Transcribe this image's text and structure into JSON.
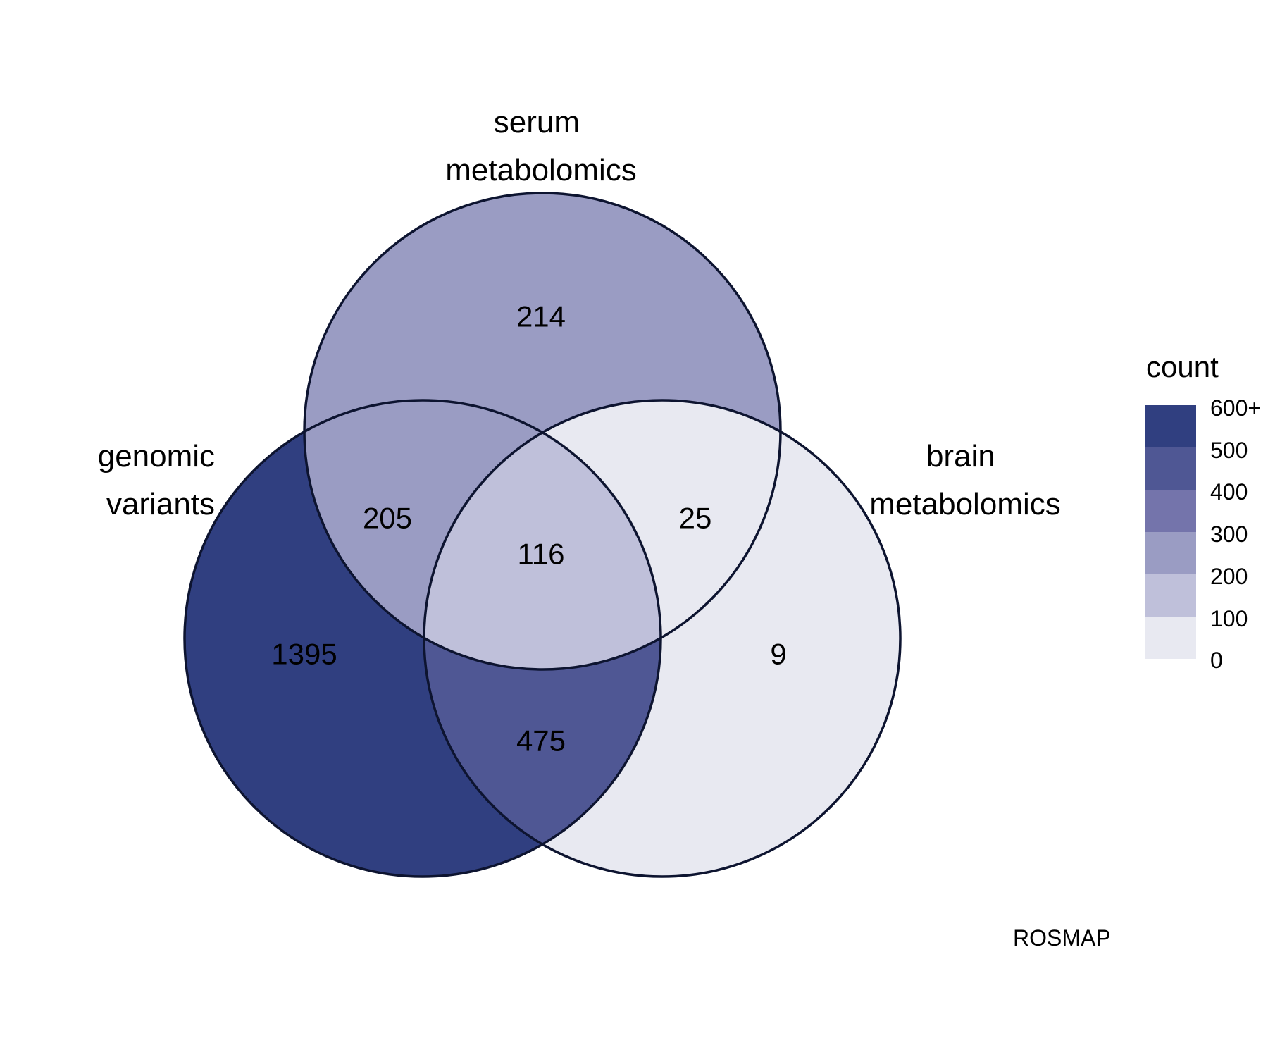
{
  "sets": [
    {
      "id": "A",
      "label_lines": [
        "genomic",
        "variants"
      ]
    },
    {
      "id": "B",
      "label_lines": [
        "serum",
        "metabolomics"
      ]
    },
    {
      "id": "C",
      "label_lines": [
        "brain",
        "metabolomics"
      ]
    }
  ],
  "regions": [
    {
      "sets": [
        "A"
      ],
      "count": 1395,
      "text": "1395",
      "color": "#303f80"
    },
    {
      "sets": [
        "B"
      ],
      "count": 214,
      "text": "214",
      "color": "#9a9cc3"
    },
    {
      "sets": [
        "C"
      ],
      "count": 9,
      "text": "9",
      "color": "#e8e9f1"
    },
    {
      "sets": [
        "A",
        "B"
      ],
      "count": 205,
      "text": "205",
      "color": "#9a9cc3"
    },
    {
      "sets": [
        "B",
        "C"
      ],
      "count": 25,
      "text": "25",
      "color": "#e8e9f1"
    },
    {
      "sets": [
        "A",
        "C"
      ],
      "count": 475,
      "text": "475",
      "color": "#4f5794"
    },
    {
      "sets": [
        "A",
        "B",
        "C"
      ],
      "count": 116,
      "text": "116",
      "color": "#bfc0da"
    }
  ],
  "legend": {
    "title": "count",
    "ticks": [
      "600+",
      "500",
      "400",
      "300",
      "200",
      "100",
      "0"
    ],
    "bins": [
      "#303f80",
      "#4f5794",
      "#7474ab",
      "#9a9cc3",
      "#bfc0da",
      "#e8e9f1"
    ]
  },
  "caption": "ROSMAP"
}
